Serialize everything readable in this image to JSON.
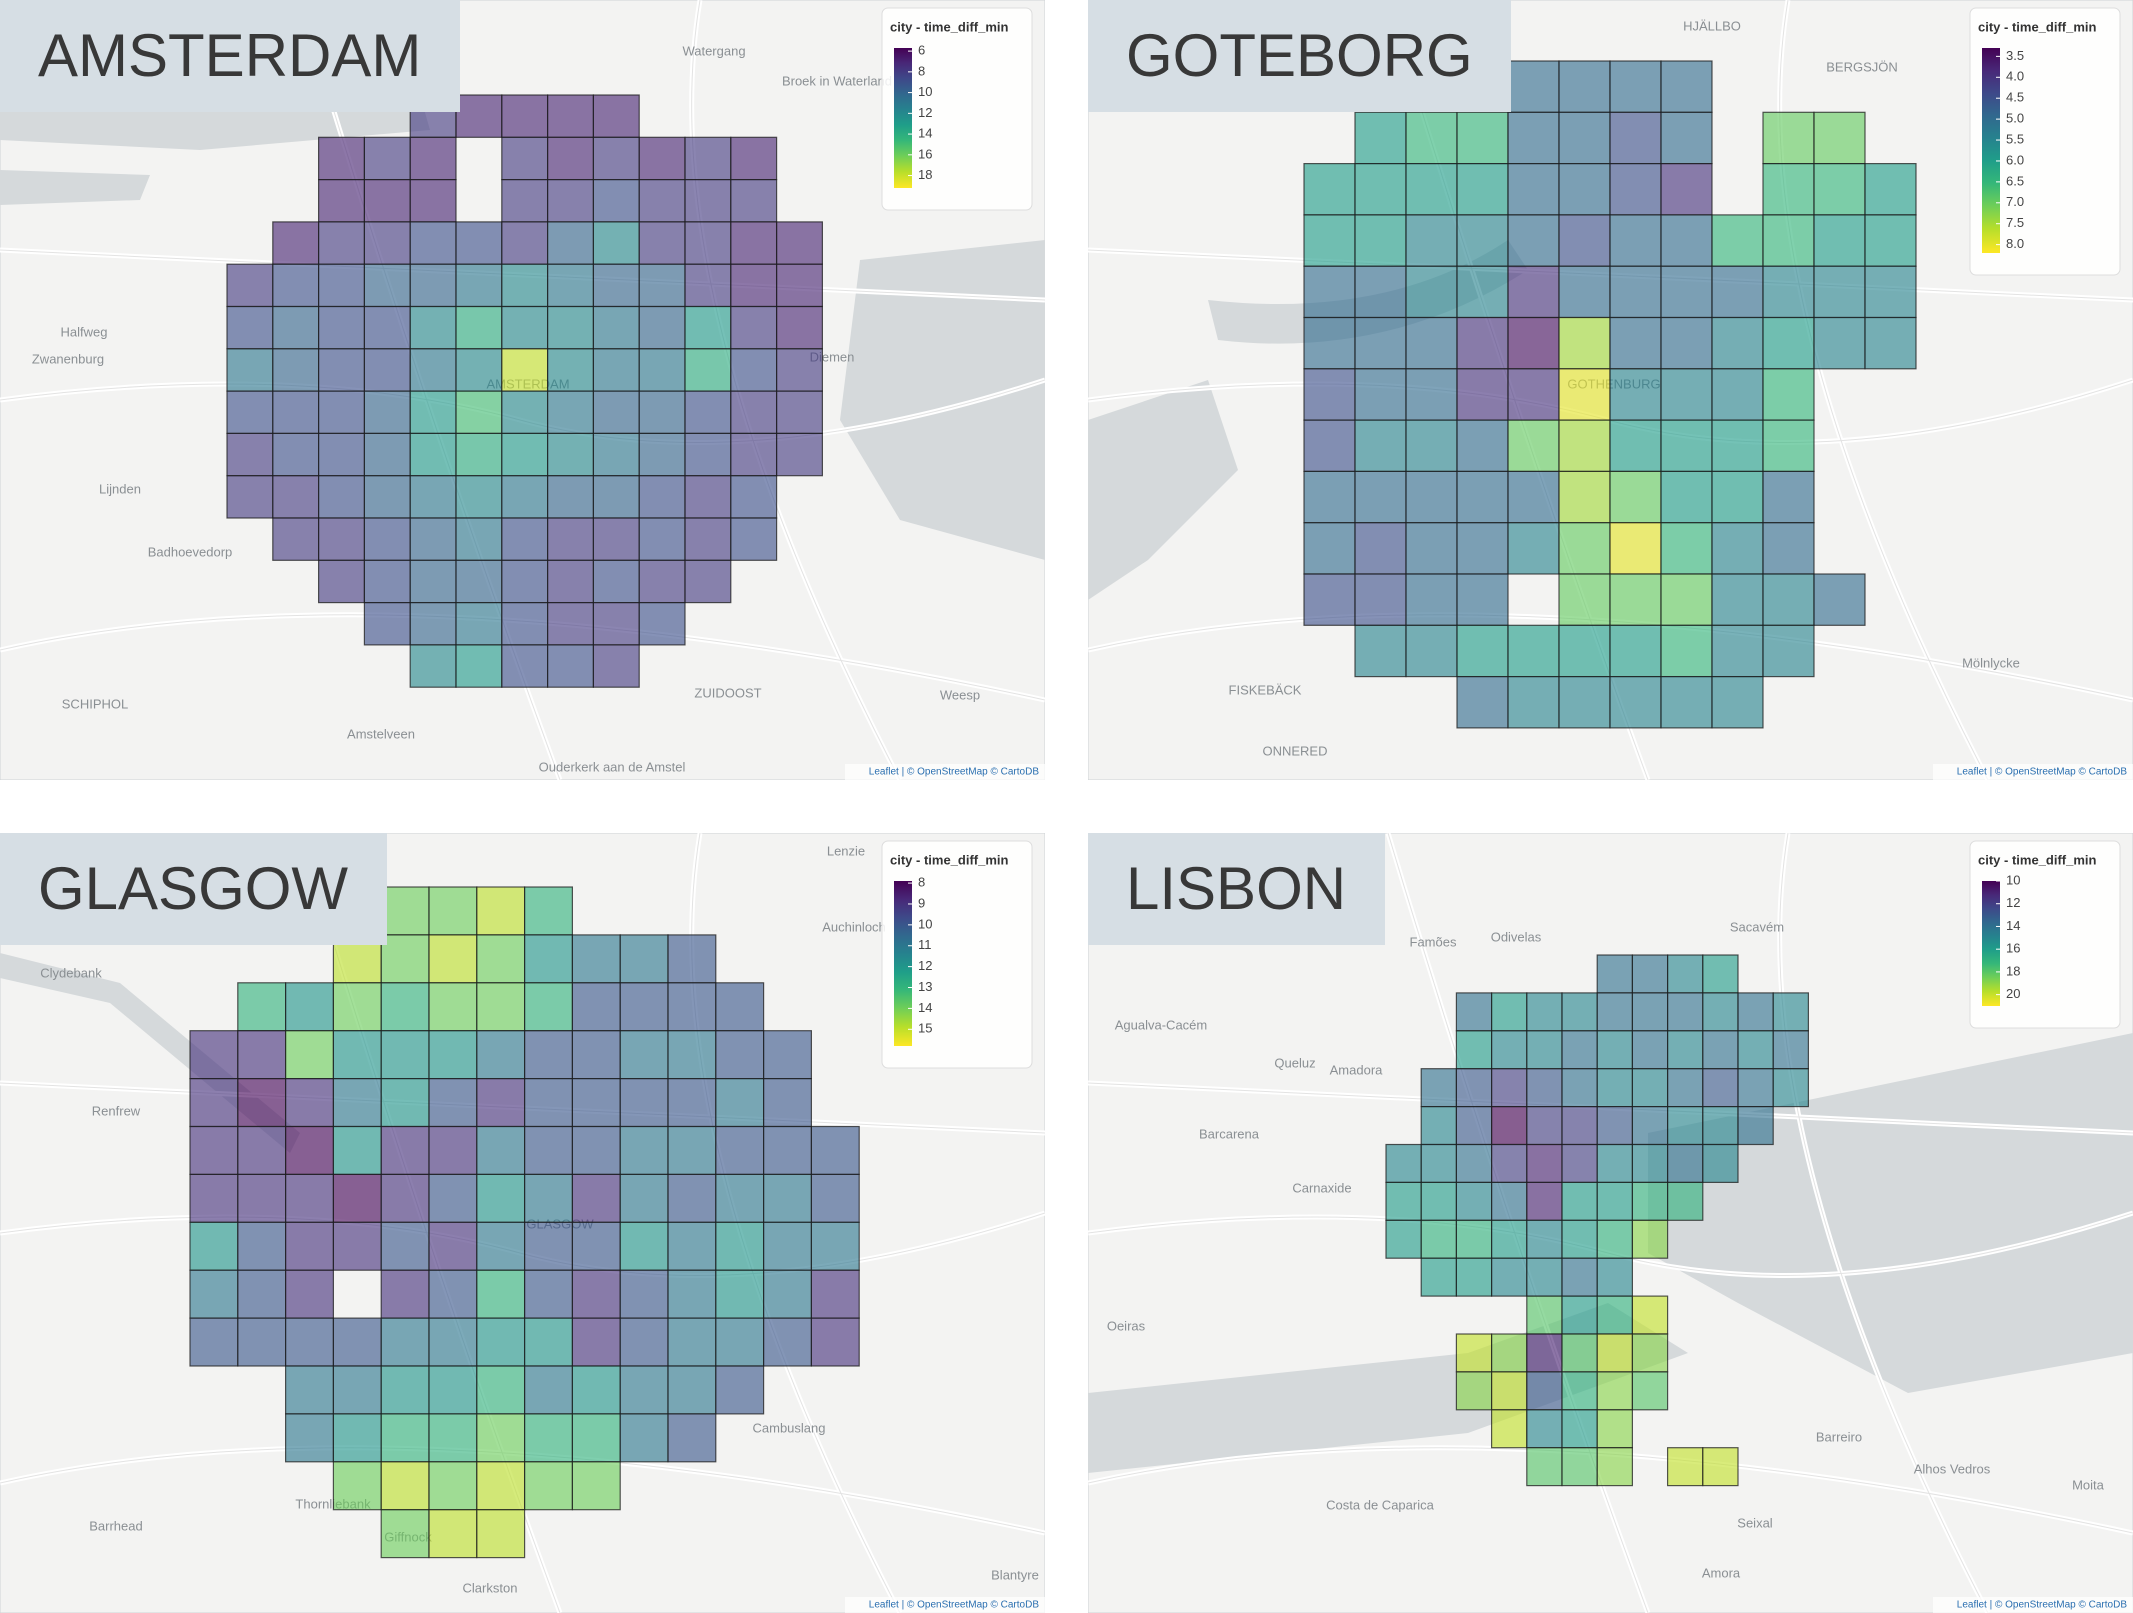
{
  "panels": [
    {
      "title": "AMSTERDAM",
      "legend": {
        "title": "city - time_diff_min",
        "ticks": [
          6,
          8,
          10,
          12,
          14,
          16,
          18
        ],
        "limits": [
          5.7,
          19.2
        ]
      },
      "grid": [
        [
          null,
          null,
          null,
          null,
          8,
          7,
          7,
          7,
          7,
          null,
          null,
          null,
          null
        ],
        [
          null,
          null,
          7,
          8,
          7,
          null,
          8,
          7,
          8,
          7,
          8,
          7,
          null
        ],
        [
          null,
          null,
          7,
          7,
          7,
          null,
          8,
          8,
          9,
          8,
          8,
          8,
          null
        ],
        [
          null,
          7,
          8,
          8,
          9,
          9,
          8,
          10,
          12,
          8,
          8,
          7,
          7
        ],
        [
          8,
          9,
          9,
          10,
          10,
          11,
          12,
          11,
          10,
          10,
          8,
          7,
          7
        ],
        [
          9,
          10,
          9,
          9,
          12,
          14,
          12,
          12,
          11,
          10,
          13,
          8,
          7
        ],
        [
          11,
          10,
          9,
          9,
          11,
          12,
          18,
          12,
          11,
          11,
          14,
          9,
          8
        ],
        [
          9,
          9,
          9,
          10,
          13,
          15,
          12,
          11,
          10,
          10,
          9,
          8,
          8
        ],
        [
          8,
          9,
          9,
          10,
          13,
          14,
          13,
          12,
          11,
          10,
          9,
          8,
          8
        ],
        [
          8,
          8,
          9,
          10,
          11,
          12,
          11,
          10,
          10,
          9,
          8,
          9,
          null
        ],
        [
          null,
          8,
          8,
          9,
          10,
          11,
          9,
          8,
          8,
          9,
          8,
          9,
          null
        ],
        [
          null,
          null,
          8,
          9,
          10,
          10,
          9,
          8,
          9,
          8,
          8,
          null,
          null
        ],
        [
          null,
          null,
          null,
          9,
          10,
          11,
          9,
          8,
          8,
          9,
          null,
          null,
          null
        ],
        [
          null,
          null,
          null,
          null,
          12,
          13,
          9,
          9,
          8,
          null,
          null,
          null,
          null
        ]
      ],
      "places": [
        "Watergang",
        "Broek in Waterland",
        "Halfweg",
        "Zwanenburg",
        "AMSTERDAM",
        "Diemen",
        "Lijnden",
        "Badhoevedorp",
        "SCHIPHOL",
        "Amstelveen",
        "Ouderkerk aan de Amstel",
        "ZUIDOOST",
        "Weesp"
      ],
      "attribution": "Leaflet | © OpenStreetMap © CartoDB"
    },
    {
      "title": "GOTEBORG",
      "legend": {
        "title": "city - time_diff_min",
        "ticks": [
          3.5,
          {
            "value": 4,
            "label": "4.0"
          },
          4.5,
          {
            "value": 5,
            "label": "5.0"
          },
          5.5,
          {
            "value": 6,
            "label": "6.0"
          },
          6.5,
          {
            "value": 7,
            "label": "7.0"
          },
          7.5,
          {
            "value": 8,
            "label": "8.0"
          }
        ],
        "limits": [
          3.3,
          8.2
        ]
      },
      "grid": [
        [
          null,
          null,
          null,
          null,
          5,
          5,
          5,
          5,
          null,
          null,
          null,
          null
        ],
        [
          null,
          6,
          6.5,
          6.5,
          5,
          5,
          4.5,
          5,
          null,
          7,
          7,
          null
        ],
        [
          6,
          6,
          6,
          6,
          5,
          5,
          4.5,
          4,
          null,
          6.5,
          6.5,
          6
        ],
        [
          6,
          6,
          5.5,
          5.5,
          5,
          4.5,
          5,
          5,
          6.5,
          6.5,
          6,
          6
        ],
        [
          5,
          5,
          5.5,
          5.5,
          4,
          5,
          5,
          5,
          5,
          5.5,
          5.5,
          5.5
        ],
        [
          5,
          5,
          5,
          4,
          3.5,
          7.5,
          5,
          5,
          5.5,
          6,
          5.5,
          5.5
        ],
        [
          4.5,
          5,
          5,
          4,
          4,
          8,
          5.5,
          5.5,
          5.5,
          6.5,
          null,
          null
        ],
        [
          4.5,
          5.5,
          5.5,
          5,
          7,
          7.5,
          6,
          6,
          6,
          6.5,
          null,
          null
        ],
        [
          5,
          5,
          5,
          5,
          5,
          7.5,
          7,
          6,
          6,
          5,
          null,
          null
        ],
        [
          5,
          4.5,
          5,
          5,
          5.5,
          7,
          8,
          6.5,
          5.5,
          5,
          null,
          null
        ],
        [
          4.5,
          4.5,
          5,
          5,
          null,
          7,
          7,
          7,
          5.5,
          5.5,
          5,
          null
        ],
        [
          null,
          5.5,
          5.5,
          6,
          6,
          6,
          6,
          6.5,
          5.5,
          5.5,
          null,
          null
        ],
        [
          null,
          null,
          null,
          5,
          5.5,
          5.5,
          5.5,
          5.5,
          5.5,
          null,
          null,
          null
        ]
      ],
      "places": [
        "HJÄLLBO",
        "BERGSJÖN",
        "GOTHENBURG",
        "Mölnlycke",
        "FISKEBÄCK",
        "ONNERED"
      ],
      "attribution": "Leaflet | © OpenStreetMap © CartoDB"
    },
    {
      "title": "GLASGOW",
      "legend": {
        "title": "city - time_diff_min",
        "ticks": [
          8,
          9,
          10,
          11,
          12,
          13,
          14,
          15
        ],
        "limits": [
          7.9,
          15.8
        ]
      },
      "grid": [
        [
          null,
          null,
          null,
          14,
          14,
          14,
          15,
          13,
          null,
          null,
          null,
          null,
          null,
          null
        ],
        [
          null,
          null,
          null,
          15,
          14,
          15,
          14,
          12,
          11,
          11,
          10,
          null,
          null,
          null
        ],
        [
          null,
          13,
          12,
          14,
          13,
          14,
          14,
          13,
          10,
          10,
          10,
          10,
          null,
          null
        ],
        [
          9,
          9,
          14,
          12,
          12,
          12,
          11,
          10,
          10,
          11,
          11,
          10,
          10,
          null
        ],
        [
          9,
          8,
          9,
          11,
          12,
          10,
          9,
          10,
          10,
          10,
          10,
          11,
          10,
          null
        ],
        [
          9,
          9,
          8,
          12,
          9,
          9,
          11,
          10,
          10,
          11,
          11,
          10,
          10,
          10
        ],
        [
          9,
          9,
          9,
          8,
          9,
          10,
          12,
          11,
          9,
          11,
          10,
          11,
          11,
          10
        ],
        [
          12,
          10,
          9,
          9,
          10,
          9,
          11,
          10,
          10,
          12,
          11,
          12,
          11,
          11
        ],
        [
          11,
          10,
          9,
          null,
          9,
          10,
          13,
          10,
          9,
          10,
          11,
          12,
          11,
          9
        ],
        [
          10,
          10,
          10,
          10,
          11,
          11,
          12,
          12,
          9,
          10,
          11,
          11,
          10,
          9
        ],
        [
          null,
          null,
          11,
          11,
          12,
          12,
          13,
          11,
          12,
          11,
          11,
          10,
          null,
          null
        ],
        [
          null,
          null,
          11,
          12,
          13,
          13,
          14,
          13,
          13,
          11,
          10,
          null,
          null,
          null
        ],
        [
          null,
          null,
          null,
          14,
          15,
          14,
          15,
          14,
          14,
          null,
          null,
          null,
          null,
          null
        ],
        [
          null,
          null,
          null,
          null,
          14,
          15,
          15,
          null,
          null,
          null,
          null,
          null,
          null,
          null
        ]
      ],
      "places": [
        "Lenzie",
        "Clydebank",
        "Renfrew",
        "GLASGOW",
        "Cambuslang",
        "Thornliebank",
        "Giffnock",
        "Barrhead",
        "Clarkston",
        "Blantyre",
        "Auchinloch"
      ],
      "attribution": "Leaflet | © OpenStreetMap © CartoDB"
    },
    {
      "title": "LISBON",
      "legend": {
        "title": "city - time_diff_min",
        "ticks": [
          10,
          12,
          14,
          16,
          18,
          20
        ],
        "limits": [
          10,
          21
        ]
      },
      "grid": [
        [
          null,
          null,
          null,
          null,
          null,
          null,
          14,
          14,
          15,
          16,
          null,
          null
        ],
        [
          null,
          null,
          14,
          16,
          15,
          15,
          14,
          14,
          14,
          15,
          14,
          15
        ],
        [
          null,
          null,
          16,
          15,
          15,
          14,
          15,
          14,
          15,
          14,
          15,
          14
        ],
        [
          null,
          14,
          13,
          12,
          13,
          14,
          15,
          15,
          14,
          13,
          14,
          15
        ],
        [
          null,
          15,
          13,
          10,
          12,
          12,
          13,
          14,
          15,
          15,
          14,
          null
        ],
        [
          15,
          15,
          14,
          12,
          11,
          12,
          15,
          15,
          14,
          15,
          null,
          null
        ],
        [
          16,
          16,
          15,
          14,
          11,
          16,
          16,
          17,
          17,
          null,
          null,
          null
        ],
        [
          16,
          17,
          17,
          16,
          15,
          16,
          17,
          19,
          null,
          null,
          null,
          null
        ],
        [
          null,
          16,
          16,
          15,
          15,
          14,
          15,
          null,
          null,
          null,
          null,
          null
        ],
        [
          null,
          null,
          null,
          null,
          18,
          16,
          17,
          20,
          null,
          null,
          null,
          null
        ],
        [
          null,
          null,
          20,
          19,
          11,
          18,
          20,
          19,
          null,
          null,
          null,
          null
        ],
        [
          null,
          null,
          19,
          20,
          13,
          17,
          19,
          18,
          null,
          null,
          null,
          null
        ],
        [
          null,
          null,
          null,
          20,
          15,
          16,
          19,
          null,
          null,
          null,
          null,
          null
        ],
        [
          null,
          null,
          null,
          null,
          18,
          18,
          19,
          null,
          20,
          20,
          null,
          null
        ]
      ],
      "places": [
        "Sacavém",
        "Odivelas",
        "Famões",
        "Agualva-Cacém",
        "Queluz",
        "Amadora",
        "Barcarena",
        "Carnaxide",
        "Oeiras",
        "Barreiro",
        "Costa de Caparica",
        "Alhos Vedros",
        "Moita",
        "Seixal",
        "Amora"
      ],
      "attribution": "Leaflet | © OpenStreetMap © CartoDB"
    }
  ]
}
